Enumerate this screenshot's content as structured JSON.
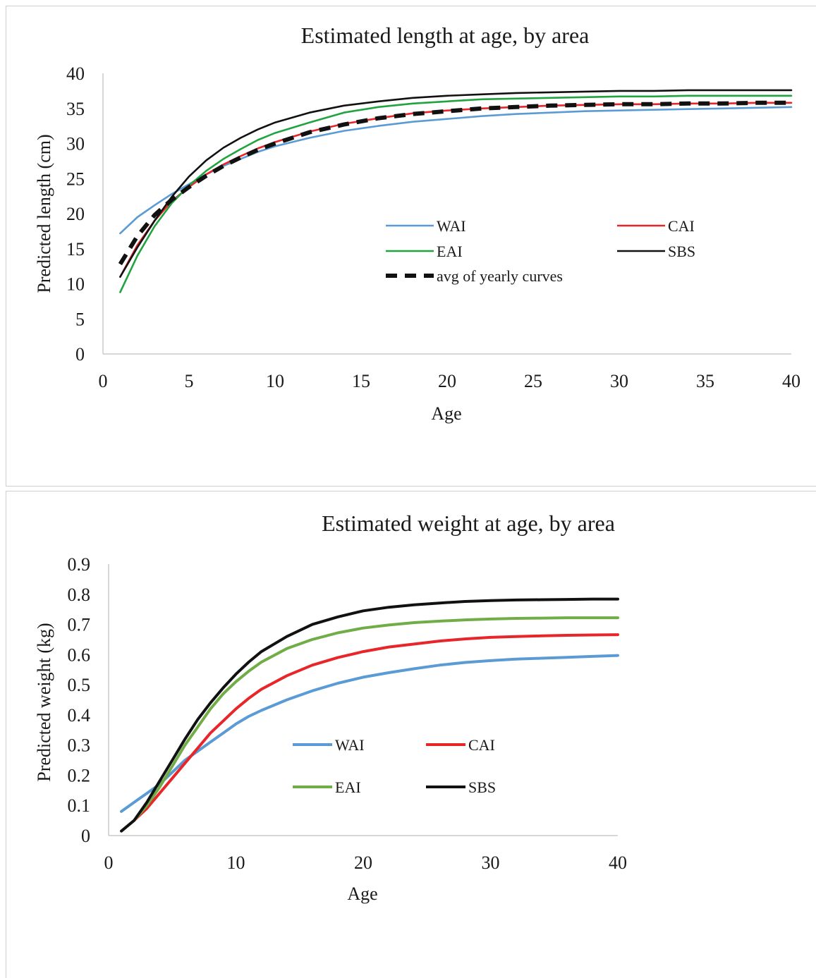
{
  "chart_data": [
    {
      "type": "line",
      "title": "Estimated length  at age, by area",
      "xlabel": "Age",
      "ylabel": "Predicted length  (cm)",
      "xlim": [
        0,
        40
      ],
      "ylim": [
        0,
        40
      ],
      "xticks": [
        "0",
        "5",
        "10",
        "15",
        "20",
        "25",
        "30",
        "35",
        "40"
      ],
      "yticks": [
        "0",
        "5",
        "10",
        "15",
        "20",
        "25",
        "30",
        "35",
        "40"
      ],
      "grid": false,
      "legend_position": "inside-center-right",
      "x": [
        1,
        2,
        3,
        4,
        5,
        6,
        7,
        8,
        9,
        10,
        12,
        14,
        16,
        18,
        20,
        22,
        24,
        26,
        28,
        30,
        32,
        34,
        36,
        38,
        40
      ],
      "series": [
        {
          "name": "WAI",
          "color": "#5b9bd5",
          "dashed": false,
          "values": [
            17.2,
            19.5,
            21.2,
            22.8,
            24.2,
            25.6,
            26.8,
            27.8,
            28.8,
            29.6,
            30.8,
            31.8,
            32.5,
            33.1,
            33.5,
            33.9,
            34.2,
            34.4,
            34.6,
            34.7,
            34.8,
            34.9,
            35.0,
            35.1,
            35.2
          ]
        },
        {
          "name": "CAI",
          "color": "#e8262a",
          "dashed": false,
          "values": [
            11.0,
            15.5,
            19.0,
            21.8,
            23.8,
            25.6,
            27.0,
            28.2,
            29.3,
            30.2,
            31.7,
            32.8,
            33.6,
            34.3,
            34.7,
            35.0,
            35.2,
            35.4,
            35.5,
            35.6,
            35.6,
            35.7,
            35.7,
            35.8,
            35.8
          ]
        },
        {
          "name": "EAI",
          "color": "#21a340",
          "dashed": false,
          "values": [
            8.8,
            14.0,
            18.2,
            21.5,
            24.0,
            26.1,
            27.8,
            29.2,
            30.5,
            31.5,
            33.0,
            34.4,
            35.2,
            35.7,
            36.0,
            36.3,
            36.4,
            36.5,
            36.6,
            36.7,
            36.7,
            36.8,
            36.8,
            36.8,
            36.8
          ]
        },
        {
          "name": "SBS",
          "color": "#111111",
          "dashed": false,
          "values": [
            11.0,
            15.2,
            19.0,
            22.4,
            25.3,
            27.6,
            29.4,
            30.8,
            32.0,
            33.0,
            34.4,
            35.4,
            36.0,
            36.5,
            36.8,
            37.0,
            37.2,
            37.3,
            37.4,
            37.5,
            37.5,
            37.6,
            37.6,
            37.6,
            37.6
          ]
        },
        {
          "name": "avg of yearly curves",
          "color": "#111111",
          "dashed": true,
          "values": [
            12.8,
            16.8,
            19.8,
            22.0,
            23.8,
            25.4,
            26.8,
            28.0,
            29.1,
            30.0,
            31.6,
            32.7,
            33.6,
            34.2,
            34.6,
            35.0,
            35.2,
            35.4,
            35.5,
            35.6,
            35.6,
            35.7,
            35.7,
            35.8,
            35.8
          ]
        }
      ]
    },
    {
      "type": "line",
      "title": "Estimated weight  at age, by area",
      "xlabel": "Age",
      "ylabel": "Predicted weight  (kg)",
      "xlim": [
        0,
        40
      ],
      "ylim": [
        0,
        0.9
      ],
      "xticks": [
        "0",
        "10",
        "20",
        "30",
        "40"
      ],
      "yticks": [
        "0",
        "0.1",
        "0.2",
        "0.3",
        "0.4",
        "0.5",
        "0.6",
        "0.7",
        "0.8",
        "0.9"
      ],
      "grid": false,
      "legend_position": "inside-center",
      "x": [
        1,
        2,
        3,
        4,
        5,
        6,
        7,
        8,
        9,
        10,
        11,
        12,
        14,
        16,
        18,
        20,
        22,
        24,
        26,
        28,
        30,
        32,
        34,
        36,
        38,
        40
      ],
      "series": [
        {
          "name": "WAI",
          "color": "#5b9bd5",
          "dashed": false,
          "values": [
            0.08,
            0.11,
            0.14,
            0.17,
            0.21,
            0.25,
            0.28,
            0.31,
            0.34,
            0.37,
            0.395,
            0.415,
            0.45,
            0.48,
            0.505,
            0.525,
            0.54,
            0.553,
            0.565,
            0.574,
            0.58,
            0.585,
            0.588,
            0.591,
            0.594,
            0.597
          ]
        },
        {
          "name": "CAI",
          "color": "#e8262a",
          "dashed": false,
          "values": [
            0.015,
            0.05,
            0.09,
            0.14,
            0.19,
            0.24,
            0.29,
            0.34,
            0.38,
            0.42,
            0.455,
            0.485,
            0.53,
            0.565,
            0.59,
            0.61,
            0.625,
            0.635,
            0.645,
            0.652,
            0.657,
            0.66,
            0.662,
            0.664,
            0.665,
            0.666
          ]
        },
        {
          "name": "EAI",
          "color": "#70ad47",
          "dashed": false,
          "values": [
            0.015,
            0.05,
            0.1,
            0.16,
            0.23,
            0.3,
            0.36,
            0.42,
            0.47,
            0.51,
            0.545,
            0.575,
            0.62,
            0.65,
            0.672,
            0.688,
            0.698,
            0.706,
            0.711,
            0.715,
            0.718,
            0.72,
            0.721,
            0.722,
            0.722,
            0.722
          ]
        },
        {
          "name": "SBS",
          "color": "#111111",
          "dashed": false,
          "values": [
            0.015,
            0.05,
            0.11,
            0.18,
            0.25,
            0.32,
            0.385,
            0.44,
            0.49,
            0.535,
            0.575,
            0.61,
            0.66,
            0.7,
            0.725,
            0.745,
            0.757,
            0.765,
            0.771,
            0.776,
            0.779,
            0.781,
            0.782,
            0.783,
            0.784,
            0.784
          ]
        }
      ]
    }
  ]
}
